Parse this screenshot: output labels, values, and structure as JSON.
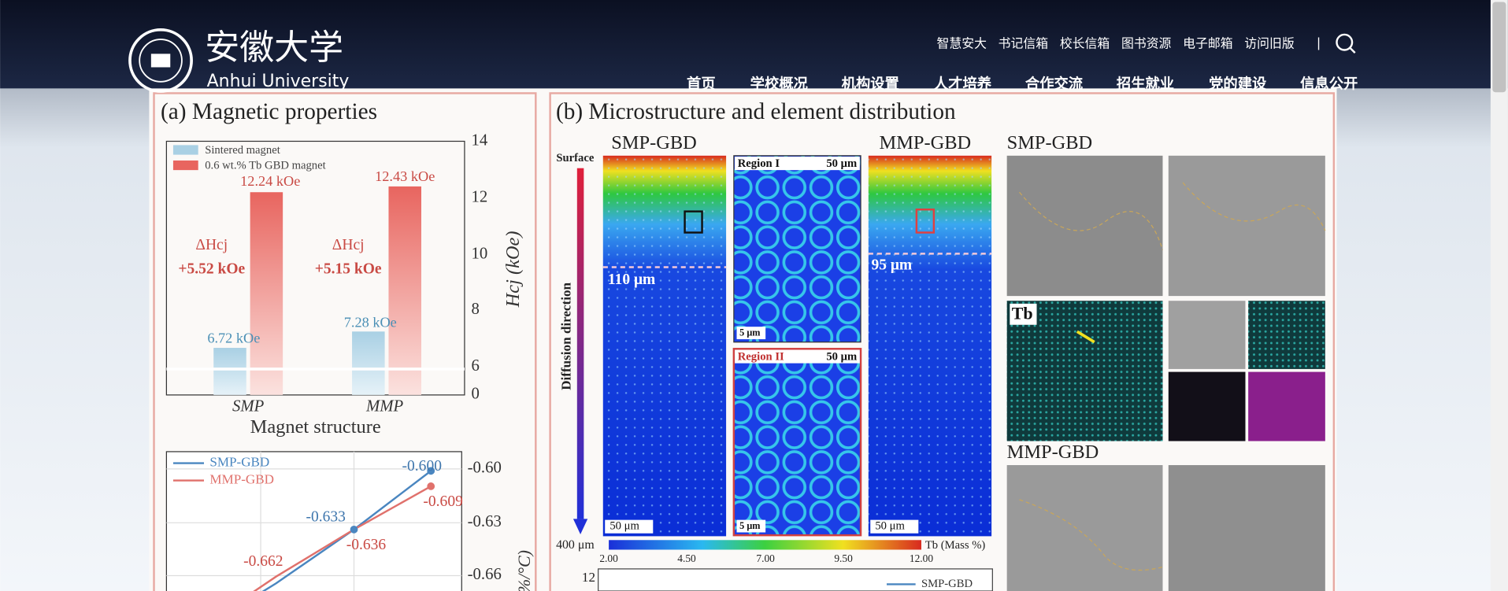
{
  "header": {
    "logo_cn": "安徽大学",
    "logo_en": "Anhui University",
    "top_links": [
      "智慧安大",
      "书记信箱",
      "校长信箱",
      "图书资源",
      "电子邮箱",
      "访问旧版"
    ],
    "separator": "|",
    "nav": [
      "首页",
      "学校概况",
      "机构设置",
      "人才培养",
      "合作交流",
      "招生就业",
      "党的建设",
      "信息公开"
    ]
  },
  "figure": {
    "panel_a": {
      "title": "(a) Magnetic properties",
      "legend": [
        "Sintered magnet",
        "0.6 wt.% Tb GBD magnet"
      ],
      "bar_labels": [
        "6.72 kOe",
        "12.24 kOe",
        "7.28 kOe",
        "12.43 kOe"
      ],
      "delta_labels": [
        "ΔHcj",
        "+5.52 kOe",
        "ΔHcj",
        "+5.15 kOe"
      ],
      "y_ticks": [
        "14",
        "12",
        "10",
        "8",
        "6",
        "0"
      ],
      "y_label": "Hcj (kOe)",
      "categories": [
        "SMP",
        "MMP"
      ],
      "x_label": "Magnet structure",
      "line_legend": [
        "SMP-GBD",
        "MMP-GBD"
      ],
      "line_labels": [
        "-0.600",
        "-0.633",
        "-0.662",
        "-0.609",
        "-0.636"
      ],
      "line_ticks": [
        "-0.60",
        "-0.63",
        "-0.66"
      ],
      "line_y_label": "%/°C)"
    },
    "panel_b": {
      "title": "(b) Microstructure and element distribution",
      "map_titles": [
        "SMP-GBD",
        "MMP-GBD"
      ],
      "surface": "Surface",
      "direction": "Diffusion direction",
      "depth": "400 μm",
      "depths": [
        "110 μm",
        "95 μm"
      ],
      "regions": [
        "Region I",
        "Region II"
      ],
      "scale": "50 μm",
      "small_scale": "5 μm",
      "colorbar_ticks": [
        "2.00",
        "4.50",
        "7.00",
        "9.50",
        "12.00"
      ],
      "colorbar_label": "Tb (Mass %)",
      "tem_titles": [
        "SMP-GBD",
        "MMP-GBD"
      ],
      "tb": "Tb",
      "bottom_tick": "12",
      "bottom_legend": "SMP-GBD"
    }
  }
}
